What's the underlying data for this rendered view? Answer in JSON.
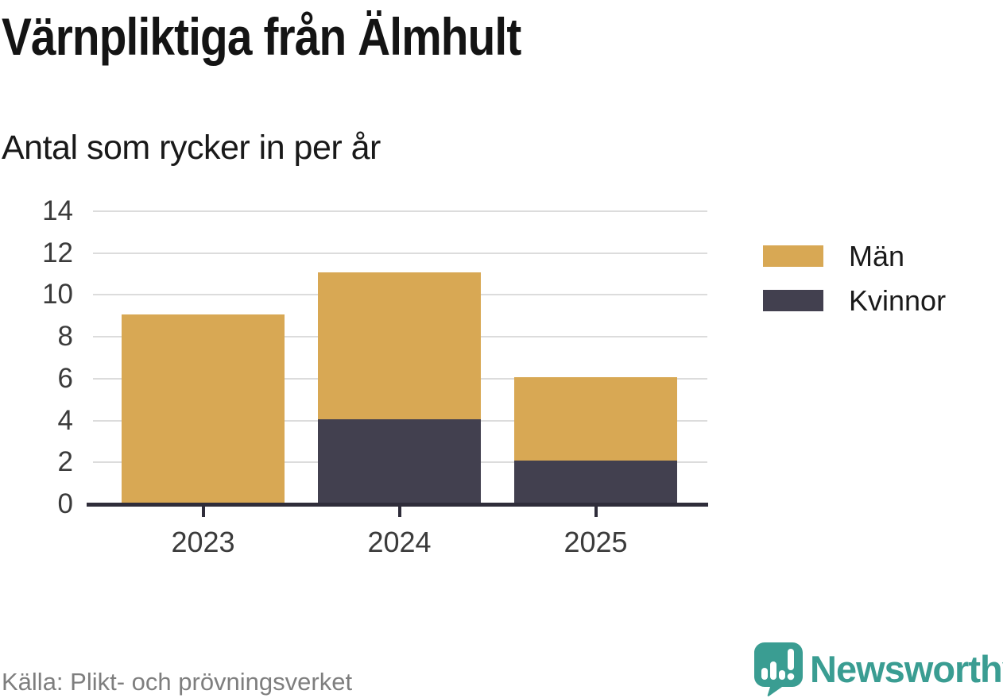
{
  "page": {
    "title": "Värnpliktiga från Älmhult",
    "subtitle": "Antal som rycker in per år",
    "source": "Källa: Plikt- och prövningsverket"
  },
  "brand": {
    "name": "Newsworthy",
    "color": "#3A9D92",
    "icon": "newsworthy-chart-bubble-icon"
  },
  "colors": {
    "men": "#D8A854",
    "women": "#42404F",
    "grid": "#DCDCDC",
    "axis": "#2F2D3A",
    "tick_label": "#3B3B3B",
    "source_text": "#7E7E7E",
    "background": "#FFFFFF"
  },
  "legend": {
    "position": "right",
    "items": [
      {
        "label": "Män",
        "color": "#D8A854"
      },
      {
        "label": "Kvinnor",
        "color": "#42404F"
      }
    ]
  },
  "chart_data": {
    "type": "bar",
    "stacked": true,
    "title": "Värnpliktiga från Älmhult",
    "subtitle": "Antal som rycker in per år",
    "categories": [
      "2023",
      "2024",
      "2025"
    ],
    "series": [
      {
        "name": "Män",
        "values": [
          9,
          7,
          4
        ],
        "color": "#D8A854"
      },
      {
        "name": "Kvinnor",
        "values": [
          0,
          4,
          2
        ],
        "color": "#42404F"
      }
    ],
    "stack_order_bottom_to_top": [
      "Kvinnor",
      "Män"
    ],
    "totals": [
      9,
      11,
      6
    ],
    "xlabel": "",
    "ylabel": "",
    "ylim": [
      0,
      14
    ],
    "yticks": [
      0,
      2,
      4,
      6,
      8,
      10,
      12,
      14
    ],
    "grid": true,
    "legend_position": "right",
    "source": "Källa: Plikt- och prövningsverket"
  }
}
